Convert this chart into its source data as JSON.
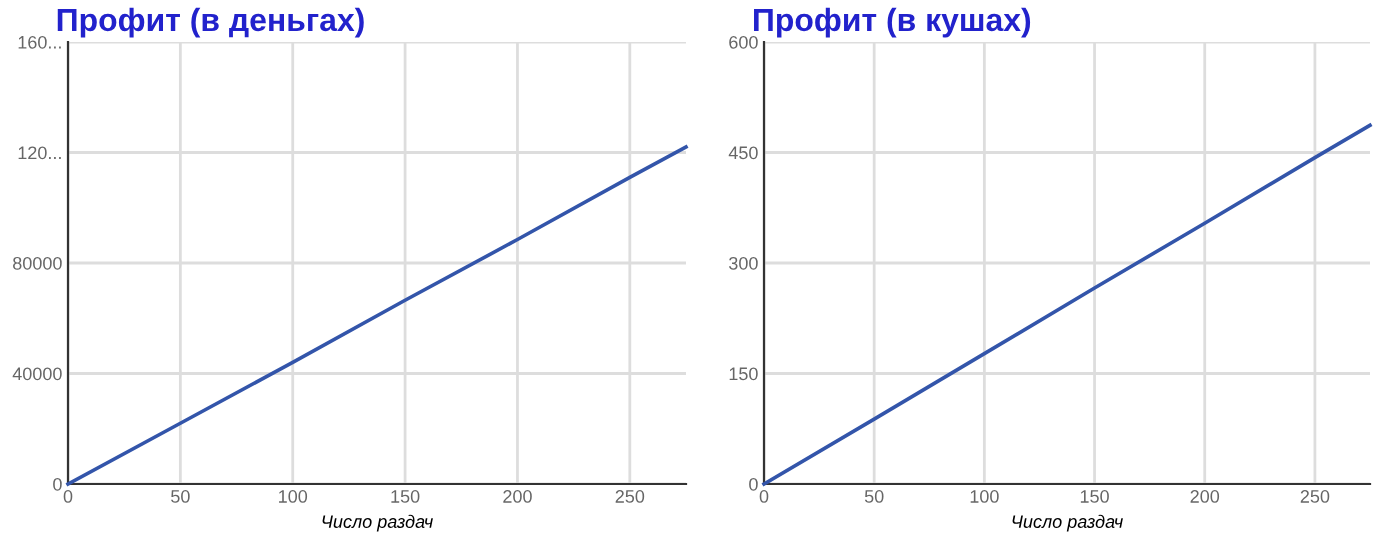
{
  "chart_data": [
    {
      "type": "line",
      "title": "Профит (в деньгах)",
      "xlabel": "Число раздач",
      "series": [
        {
          "color": "#3355aa",
          "x": [
            0,
            50,
            100,
            150,
            200,
            250,
            275
          ],
          "values": [
            0,
            22000,
            44000,
            66500,
            88500,
            111000,
            122000
          ]
        }
      ],
      "xlim": [
        0,
        275
      ],
      "ylim": [
        0,
        160000
      ],
      "xticks": [
        0,
        50,
        100,
        150,
        200,
        250
      ],
      "yticks": [
        0,
        40000,
        80000,
        {
          "value": 120000,
          "label": "120..."
        },
        {
          "value": 160000,
          "label": "160..."
        }
      ],
      "grid": true
    },
    {
      "type": "line",
      "title": "Профит (в кушах)",
      "xlabel": "Число раздач",
      "series": [
        {
          "color": "#3355aa",
          "x": [
            0,
            50,
            100,
            150,
            200,
            250,
            275
          ],
          "values": [
            0,
            88,
            177,
            266,
            354,
            443,
            487
          ]
        }
      ],
      "xlim": [
        0,
        275
      ],
      "ylim": [
        0,
        600
      ],
      "xticks": [
        0,
        50,
        100,
        150,
        200,
        250
      ],
      "yticks": [
        0,
        150,
        300,
        450,
        600
      ],
      "grid": true
    }
  ]
}
